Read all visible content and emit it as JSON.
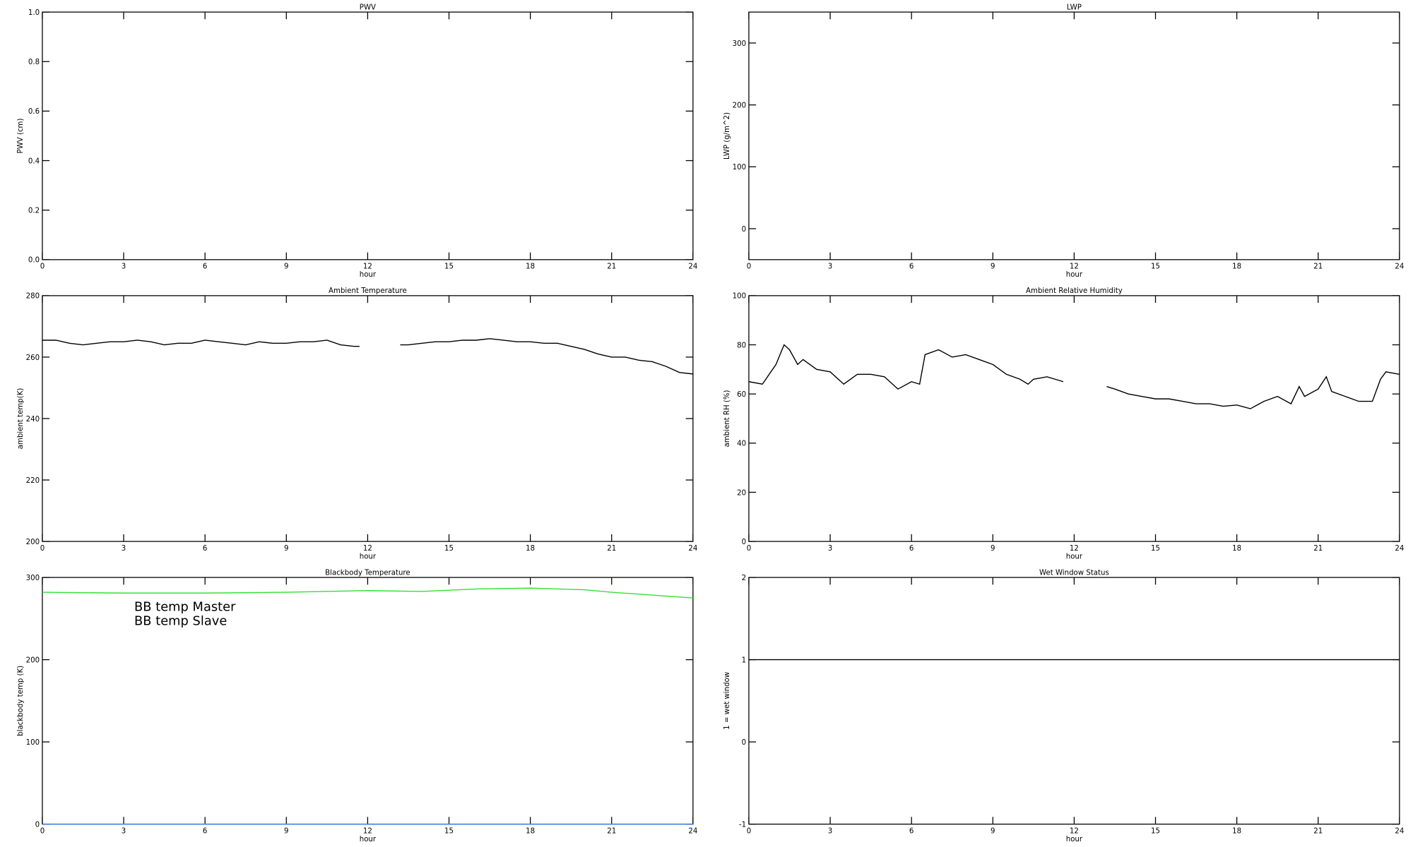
{
  "chart_data": [
    {
      "type": "line",
      "title": "PWV",
      "xlabel": "hour",
      "ylabel": "PWV (cm)",
      "xlim": [
        0,
        24
      ],
      "xticks": [
        0,
        3,
        6,
        9,
        12,
        15,
        18,
        21,
        24
      ],
      "ylim": [
        0,
        1
      ],
      "yticks": [
        {
          "value": 0,
          "label": "0.0"
        },
        0.2,
        0.4,
        0.6,
        0.8,
        {
          "value": 1,
          "label": "1.0"
        }
      ],
      "x": [],
      "series": []
    },
    {
      "type": "line",
      "title": "LWP",
      "xlabel": "hour",
      "ylabel": "LWP (g/m^2)",
      "xlim": [
        0,
        24
      ],
      "xticks": [
        0,
        3,
        6,
        9,
        12,
        15,
        18,
        21,
        24
      ],
      "ylim": [
        -50,
        350
      ],
      "yticks": [
        0,
        100,
        200,
        300
      ],
      "x": [],
      "series": []
    },
    {
      "type": "line",
      "title": "Ambient Temperature",
      "xlabel": "hour",
      "ylabel": "ambient temp(K)",
      "xlim": [
        0,
        24
      ],
      "xticks": [
        0,
        3,
        6,
        9,
        12,
        15,
        18,
        21,
        24
      ],
      "ylim": [
        200,
        280
      ],
      "yticks": [
        200,
        220,
        240,
        260,
        280
      ],
      "x": [
        0,
        0.5,
        1,
        1.5,
        2,
        2.5,
        3,
        3.5,
        4,
        4.5,
        5,
        5.5,
        6,
        6.5,
        7,
        7.5,
        8,
        8.5,
        9,
        9.5,
        10,
        10.5,
        11,
        11.5,
        11.7,
        12.5,
        13.2,
        13.5,
        14,
        14.5,
        15,
        15.5,
        16,
        16.5,
        17,
        17.5,
        18,
        18.5,
        19,
        19.5,
        20,
        20.5,
        21,
        21.5,
        22,
        22.5,
        23,
        23.5,
        24
      ],
      "series": [
        {
          "name": "ambient temp",
          "color": "#000000",
          "values": [
            265.5,
            265.5,
            264.5,
            264,
            264.5,
            265,
            265,
            265.5,
            265,
            264,
            264.5,
            264.5,
            265.5,
            265,
            264.5,
            264,
            265,
            264.5,
            264.5,
            265,
            265,
            265.5,
            264,
            263.5,
            263.5,
            null,
            264,
            264,
            264.5,
            265,
            265,
            265.5,
            265.5,
            266,
            265.5,
            265,
            265,
            264.5,
            264.5,
            263.5,
            262.5,
            261,
            260,
            260,
            259,
            258.5,
            257,
            255,
            254.5
          ]
        }
      ]
    },
    {
      "type": "line",
      "title": "Ambient Relative Humidity",
      "xlabel": "hour",
      "ylabel": "ambient RH (%)",
      "xlim": [
        0,
        24
      ],
      "xticks": [
        0,
        3,
        6,
        9,
        12,
        15,
        18,
        21,
        24
      ],
      "ylim": [
        0,
        100
      ],
      "yticks": [
        0,
        20,
        40,
        60,
        80,
        100
      ],
      "x": [
        0,
        0.5,
        1,
        1.3,
        1.5,
        1.8,
        2,
        2.5,
        3,
        3.5,
        4,
        4.5,
        5,
        5.5,
        6,
        6.3,
        6.5,
        7,
        7.5,
        8,
        8.5,
        9,
        9.5,
        10,
        10.3,
        10.5,
        11,
        11.6,
        12.5,
        13.2,
        13.5,
        14,
        14.5,
        15,
        15.5,
        16,
        16.5,
        17,
        17.5,
        18,
        18.5,
        19,
        19.5,
        20,
        20.3,
        20.5,
        21,
        21.3,
        21.5,
        22,
        22.5,
        23,
        23.3,
        23.5,
        24
      ],
      "series": [
        {
          "name": "ambient RH",
          "color": "#000000",
          "values": [
            65,
            64,
            72,
            80,
            78,
            72,
            74,
            70,
            69,
            64,
            68,
            68,
            67,
            62,
            65,
            64,
            76,
            78,
            75,
            76,
            74,
            72,
            68,
            66,
            64,
            66,
            67,
            65,
            null,
            63,
            62,
            60,
            59,
            58,
            58,
            57,
            56,
            56,
            55,
            55.5,
            54,
            57,
            59,
            56,
            63,
            59,
            62,
            67,
            61,
            59,
            57,
            57,
            66,
            69,
            68
          ]
        }
      ]
    },
    {
      "type": "line",
      "title": "Blackbody Temperature",
      "xlabel": "hour",
      "ylabel": "blackbody temp (K)",
      "xlim": [
        0,
        24
      ],
      "xticks": [
        0,
        3,
        6,
        9,
        12,
        15,
        18,
        21,
        24
      ],
      "ylim": [
        0,
        300
      ],
      "yticks": [
        0,
        100,
        200,
        300
      ],
      "legend": "upper left",
      "x": [
        0,
        3,
        6,
        9,
        12,
        14,
        16,
        18,
        20,
        21,
        24
      ],
      "series": [
        {
          "name": "BB temp Master",
          "color": "#3d7fff",
          "values": [
            0,
            0,
            0,
            0,
            0,
            0,
            0,
            0,
            0,
            0,
            0
          ]
        },
        {
          "name": "BB temp Slave",
          "color": "#33e033",
          "values": [
            282,
            281,
            281,
            282,
            284,
            283,
            286,
            287,
            285,
            282,
            275
          ]
        }
      ]
    },
    {
      "type": "line",
      "title": "Wet Window Status",
      "xlabel": "hour",
      "ylabel": "1 = wet window",
      "xlim": [
        0,
        24
      ],
      "xticks": [
        0,
        3,
        6,
        9,
        12,
        15,
        18,
        21,
        24
      ],
      "ylim": [
        -1,
        2
      ],
      "yticks": [
        -1,
        0,
        1,
        2
      ],
      "x": [
        0,
        24
      ],
      "series": [
        {
          "name": "wet window",
          "color": "#000000",
          "values": [
            1,
            1
          ]
        }
      ]
    }
  ]
}
